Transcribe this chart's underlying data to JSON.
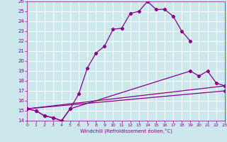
{
  "bg_color": "#cce8ec",
  "grid_color": "#ffffff",
  "line_color": "#880088",
  "xmin": 0,
  "xmax": 23,
  "ymin": 14,
  "ymax": 26,
  "xlabel": "Windchill (Refroidissement éolien,°C)",
  "c1x": [
    0,
    1,
    2,
    3,
    4,
    5,
    6,
    7,
    8,
    9,
    10,
    11,
    12,
    13,
    14,
    15,
    16,
    17,
    18,
    19
  ],
  "c1y": [
    15.2,
    15.0,
    14.5,
    14.3,
    14.0,
    15.2,
    16.7,
    19.3,
    20.8,
    21.5,
    23.2,
    23.3,
    24.8,
    25.0,
    26.0,
    25.2,
    25.2,
    24.5,
    23.0,
    22.0
  ],
  "c2x": [
    0,
    1,
    2,
    3,
    4,
    5,
    19,
    20,
    21,
    22,
    23
  ],
  "c2y": [
    15.2,
    15.0,
    14.5,
    14.3,
    14.0,
    15.2,
    19.0,
    18.5,
    19.0,
    17.8,
    17.5
  ],
  "c3x": [
    0,
    23
  ],
  "c3y": [
    15.2,
    17.5
  ],
  "c4x": [
    0,
    23
  ],
  "c4y": [
    15.2,
    17.0
  ]
}
